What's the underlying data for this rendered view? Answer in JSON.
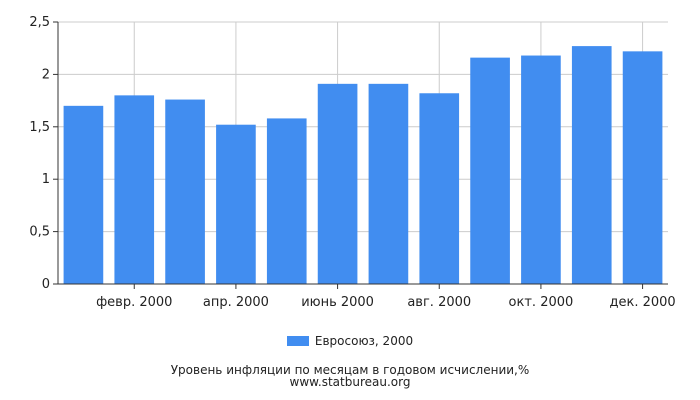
{
  "chart_data": {
    "type": "bar",
    "categories": [
      "",
      "февр. 2000",
      "",
      "апр. 2000",
      "",
      "июнь 2000",
      "",
      "авг. 2000",
      "",
      "окт. 2000",
      "",
      "дек. 2000"
    ],
    "series": [
      {
        "name": "Евросоюз, 2000",
        "values": [
          1.7,
          1.8,
          1.76,
          1.52,
          1.58,
          1.91,
          1.91,
          1.82,
          2.16,
          2.18,
          2.27,
          2.22
        ]
      }
    ],
    "yticks": [
      "0",
      "0,5",
      "1",
      "1,5",
      "2",
      "2,5"
    ],
    "ylim": [
      0,
      2.5
    ],
    "grid": true,
    "legend_position": "bottom",
    "bar_color": "#418df0"
  },
  "legend": {
    "label": "Евросоюз, 2000"
  },
  "caption": {
    "line1": "Уровень инфляции по месяцам в годовом исчислении,%",
    "line2": "www.statbureau.org"
  }
}
